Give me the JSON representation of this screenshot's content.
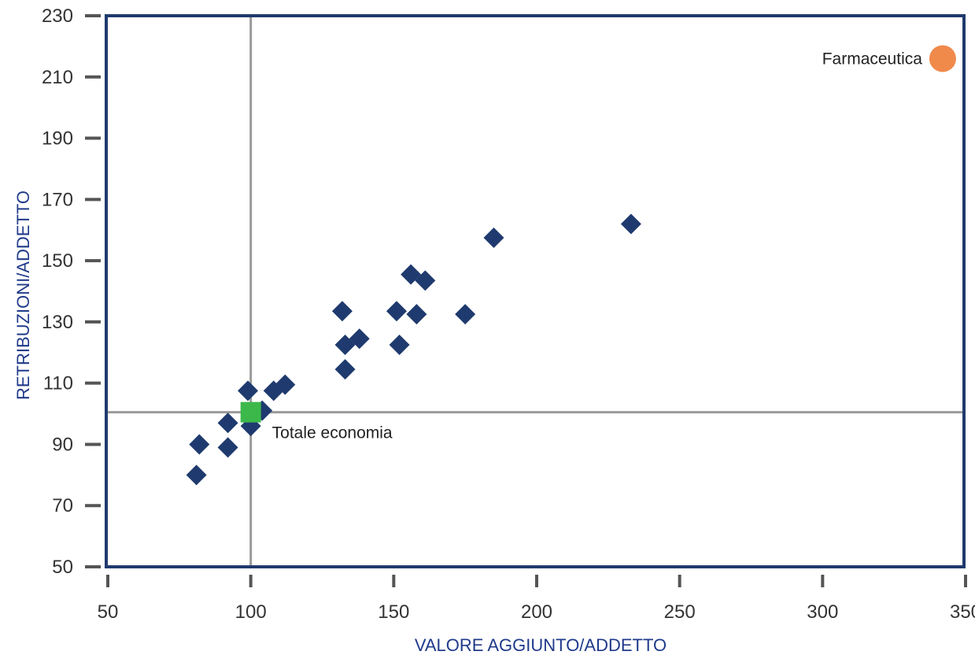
{
  "chart_data": {
    "type": "scatter",
    "xlabel": "VALORE AGGIUNTO/ADDETTO",
    "ylabel": "RETRIBUZIONI/ADDETTO",
    "xlim": [
      50,
      350
    ],
    "ylim": [
      50,
      230
    ],
    "x_ticks": [
      50,
      100,
      150,
      200,
      250,
      300,
      350
    ],
    "y_ticks": [
      50,
      70,
      90,
      110,
      130,
      150,
      170,
      190,
      210,
      230
    ],
    "reference_lines": {
      "x": 100,
      "y": 100.5
    },
    "grid": false,
    "series": [
      {
        "marker": "diamond",
        "color": "#1f3a6e",
        "points": [
          {
            "x": 81,
            "y": 80
          },
          {
            "x": 82,
            "y": 90
          },
          {
            "x": 92,
            "y": 89
          },
          {
            "x": 92,
            "y": 97
          },
          {
            "x": 100,
            "y": 96
          },
          {
            "x": 99,
            "y": 107.5
          },
          {
            "x": 104,
            "y": 101
          },
          {
            "x": 108,
            "y": 107.5
          },
          {
            "x": 112,
            "y": 109.5
          },
          {
            "x": 133,
            "y": 114.5
          },
          {
            "x": 133,
            "y": 122.5
          },
          {
            "x": 132,
            "y": 133.5
          },
          {
            "x": 138,
            "y": 124.5
          },
          {
            "x": 151,
            "y": 133.5
          },
          {
            "x": 152,
            "y": 122.5
          },
          {
            "x": 156,
            "y": 145.5
          },
          {
            "x": 158,
            "y": 132.5
          },
          {
            "x": 161,
            "y": 143.5
          },
          {
            "x": 175,
            "y": 132.5
          },
          {
            "x": 185,
            "y": 157.5
          },
          {
            "x": 233,
            "y": 162
          }
        ]
      },
      {
        "name": "Totale economia",
        "marker": "square",
        "color": "#3cb84a",
        "points": [
          {
            "x": 100,
            "y": 100.5
          }
        ]
      },
      {
        "name": "Farmaceutica",
        "marker": "circle",
        "color": "#f08a4b",
        "points": [
          {
            "x": 342,
            "y": 216
          }
        ]
      }
    ]
  },
  "colors": {
    "frame": "#1f3a6e",
    "tick": "#555555",
    "reference": "#9a9a9a"
  }
}
